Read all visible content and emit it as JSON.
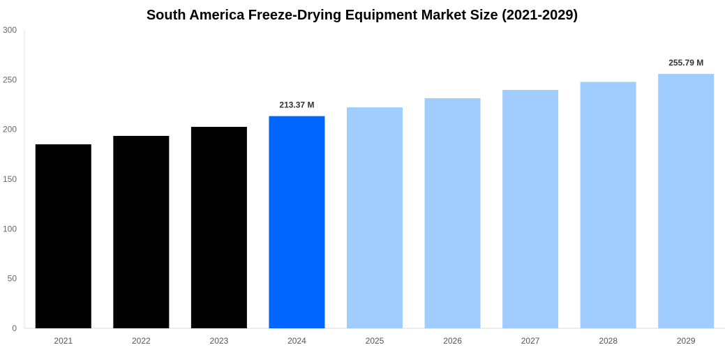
{
  "chart_data": {
    "type": "bar",
    "title": "South America Freeze-Drying Equipment Market Size (2021-2029)",
    "xlabel": "",
    "ylabel": "",
    "ylim": [
      0,
      300
    ],
    "yticks": [
      "0",
      "50",
      "100",
      "150",
      "200",
      "250",
      "300"
    ],
    "grid": false,
    "categories": [
      "2021",
      "2022",
      "2023",
      "2024",
      "2025",
      "2026",
      "2027",
      "2028",
      "2029"
    ],
    "values": [
      185.0,
      193.5,
      202.6,
      213.37,
      222.2,
      231.3,
      239.7,
      247.8,
      255.79
    ],
    "data_labels": {
      "3": "213.37 M",
      "8": "255.79 M"
    },
    "colors": {
      "historical": "#000000",
      "current": "#0066ff",
      "forecast": "#a0cdfd"
    },
    "bar_color_keys": [
      "historical",
      "historical",
      "historical",
      "current",
      "forecast",
      "forecast",
      "forecast",
      "forecast",
      "forecast"
    ]
  }
}
